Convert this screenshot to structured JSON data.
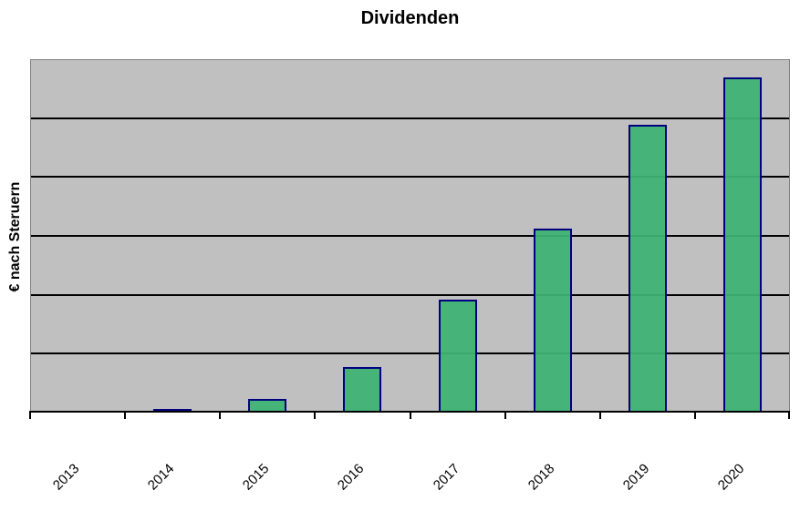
{
  "chart_data": {
    "type": "bar",
    "title": "Dividenden",
    "xlabel": "",
    "ylabel": "€ nach Steruern",
    "categories": [
      "2013",
      "2014",
      "2015",
      "2016",
      "2017",
      "2018",
      "2019",
      "2020"
    ],
    "values": [
      0,
      0.06,
      0.23,
      0.77,
      1.92,
      3.12,
      4.89,
      5.69
    ],
    "ylim": [
      0,
      6
    ],
    "y_tick_interval": 1,
    "y_tick_labels_visible": false,
    "x_tick_labels_rotation_deg": -45,
    "grid": "horizontal",
    "legend": "none",
    "value_units_note": "y-axis has no numeric labels; values are estimated in gridline units (1 unit per horizontal gridline interval)",
    "colors": {
      "bar_fill": "#3EB273",
      "bar_border": "#000080",
      "plot_background": "#C0C0C0",
      "gridline": "#000000",
      "plot_border": "#808080",
      "axis_line": "#000000",
      "page_background": "#FFFFFF",
      "text": "#000000"
    }
  }
}
